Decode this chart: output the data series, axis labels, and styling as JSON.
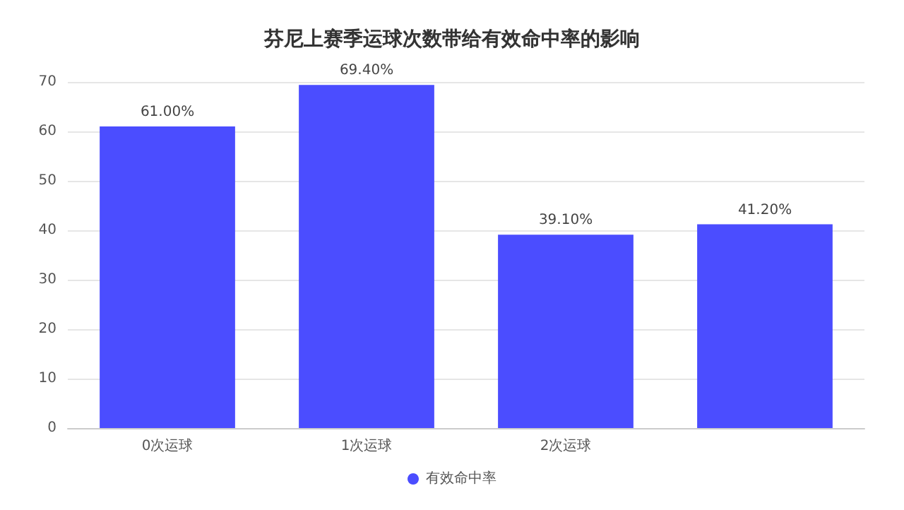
{
  "chart_data": {
    "type": "bar",
    "title": "芬尼上赛季运球次数带给有效命中率的影响",
    "categories": [
      "0次运球",
      "1次运球",
      "2次运球",
      null
    ],
    "series": [
      {
        "name": "有效命中率",
        "color": "#4b4dff",
        "values": [
          61,
          69.4,
          39.1,
          41.2
        ],
        "value_labels": [
          "61.00%",
          "69.40%",
          "39.10%",
          "41.20%"
        ]
      }
    ],
    "ylim": [
      0,
      70
    ],
    "yticks": [
      0,
      10,
      20,
      30,
      40,
      50,
      60,
      70
    ],
    "grid": "y",
    "legend": "bottom"
  }
}
